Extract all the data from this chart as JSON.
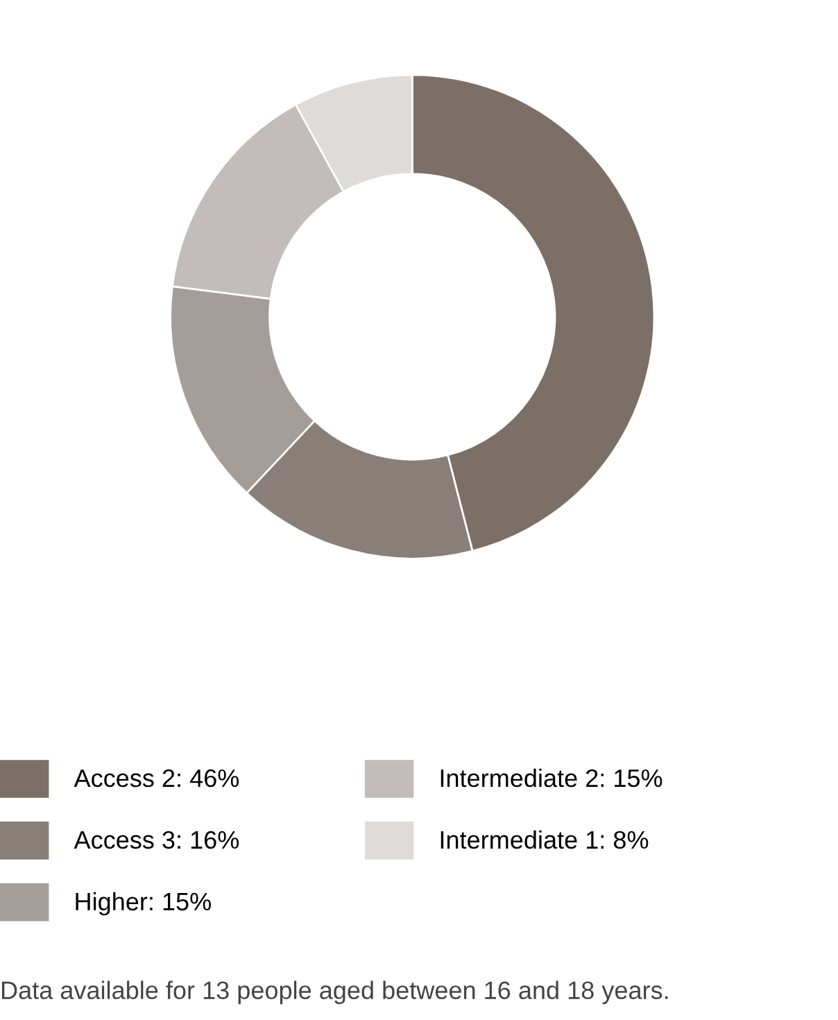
{
  "chart_data": {
    "type": "donut",
    "categories": [
      "Access 2",
      "Access 3",
      "Higher",
      "Intermediate 2",
      "Intermediate 1"
    ],
    "values": [
      46,
      16,
      15,
      15,
      8
    ],
    "value_labels": [
      "46%",
      "16%",
      "15%",
      "15%",
      "8%"
    ],
    "colors": [
      "#7b6f66",
      "#8a7f78",
      "#a59d99",
      "#c2bdba",
      "#dedcdb"
    ],
    "legend": "bottom",
    "annotations": [
      "Data available for 13 people aged between 16 and 18 years."
    ]
  }
}
